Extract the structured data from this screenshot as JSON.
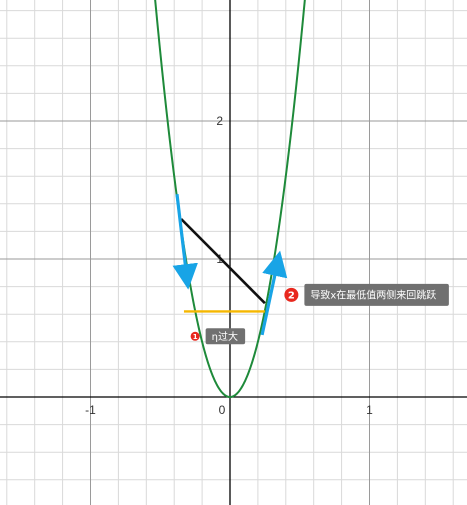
{
  "chart_data": {
    "type": "line",
    "title": "",
    "xlabel": "",
    "ylabel": "",
    "xlim": [
      -1.65,
      1.7
    ],
    "ylim": [
      -0.78,
      2.9
    ],
    "grid": true,
    "x_ticks": [
      {
        "value": -1,
        "label": "-1"
      },
      {
        "value": 0,
        "label": "0"
      },
      {
        "value": 1,
        "label": "1"
      }
    ],
    "y_ticks": [
      {
        "value": 1,
        "label": "1"
      },
      {
        "value": 2,
        "label": "2"
      }
    ],
    "curve": {
      "function": "y = 10x^2",
      "x_range": [
        -0.54,
        0.54
      ]
    },
    "colors": {
      "curve": "#1e8a3a",
      "secant": "#111111",
      "threshold": "#f5b700",
      "arrows": "#18a4e6",
      "badge": "#e8281e",
      "annotation_bg": "#707070",
      "grid_minor": "#d9d9d9",
      "grid_major": "#9a9a9a",
      "axis": "#000000"
    },
    "secant_segment": {
      "x1": -0.35,
      "y1": 1.29,
      "x2": 0.25,
      "y2": 0.68
    },
    "threshold_segment": {
      "x1": -0.33,
      "x2": 0.25,
      "y": 0.62
    },
    "arrows": [
      {
        "x1": -0.38,
        "y1": 1.47,
        "x2": -0.31,
        "y2": 0.87,
        "direction": "down"
      },
      {
        "x1": 0.23,
        "y1": 0.45,
        "x2": 0.34,
        "y2": 0.97,
        "direction": "up"
      }
    ],
    "annotations": [
      {
        "badge": "2",
        "text": "导致x在最低值两侧来回跳跃",
        "x": 0.44,
        "y": 0.74
      },
      {
        "badge": "1",
        "text": "η过大",
        "x": -0.25,
        "y": 0.44
      }
    ]
  }
}
